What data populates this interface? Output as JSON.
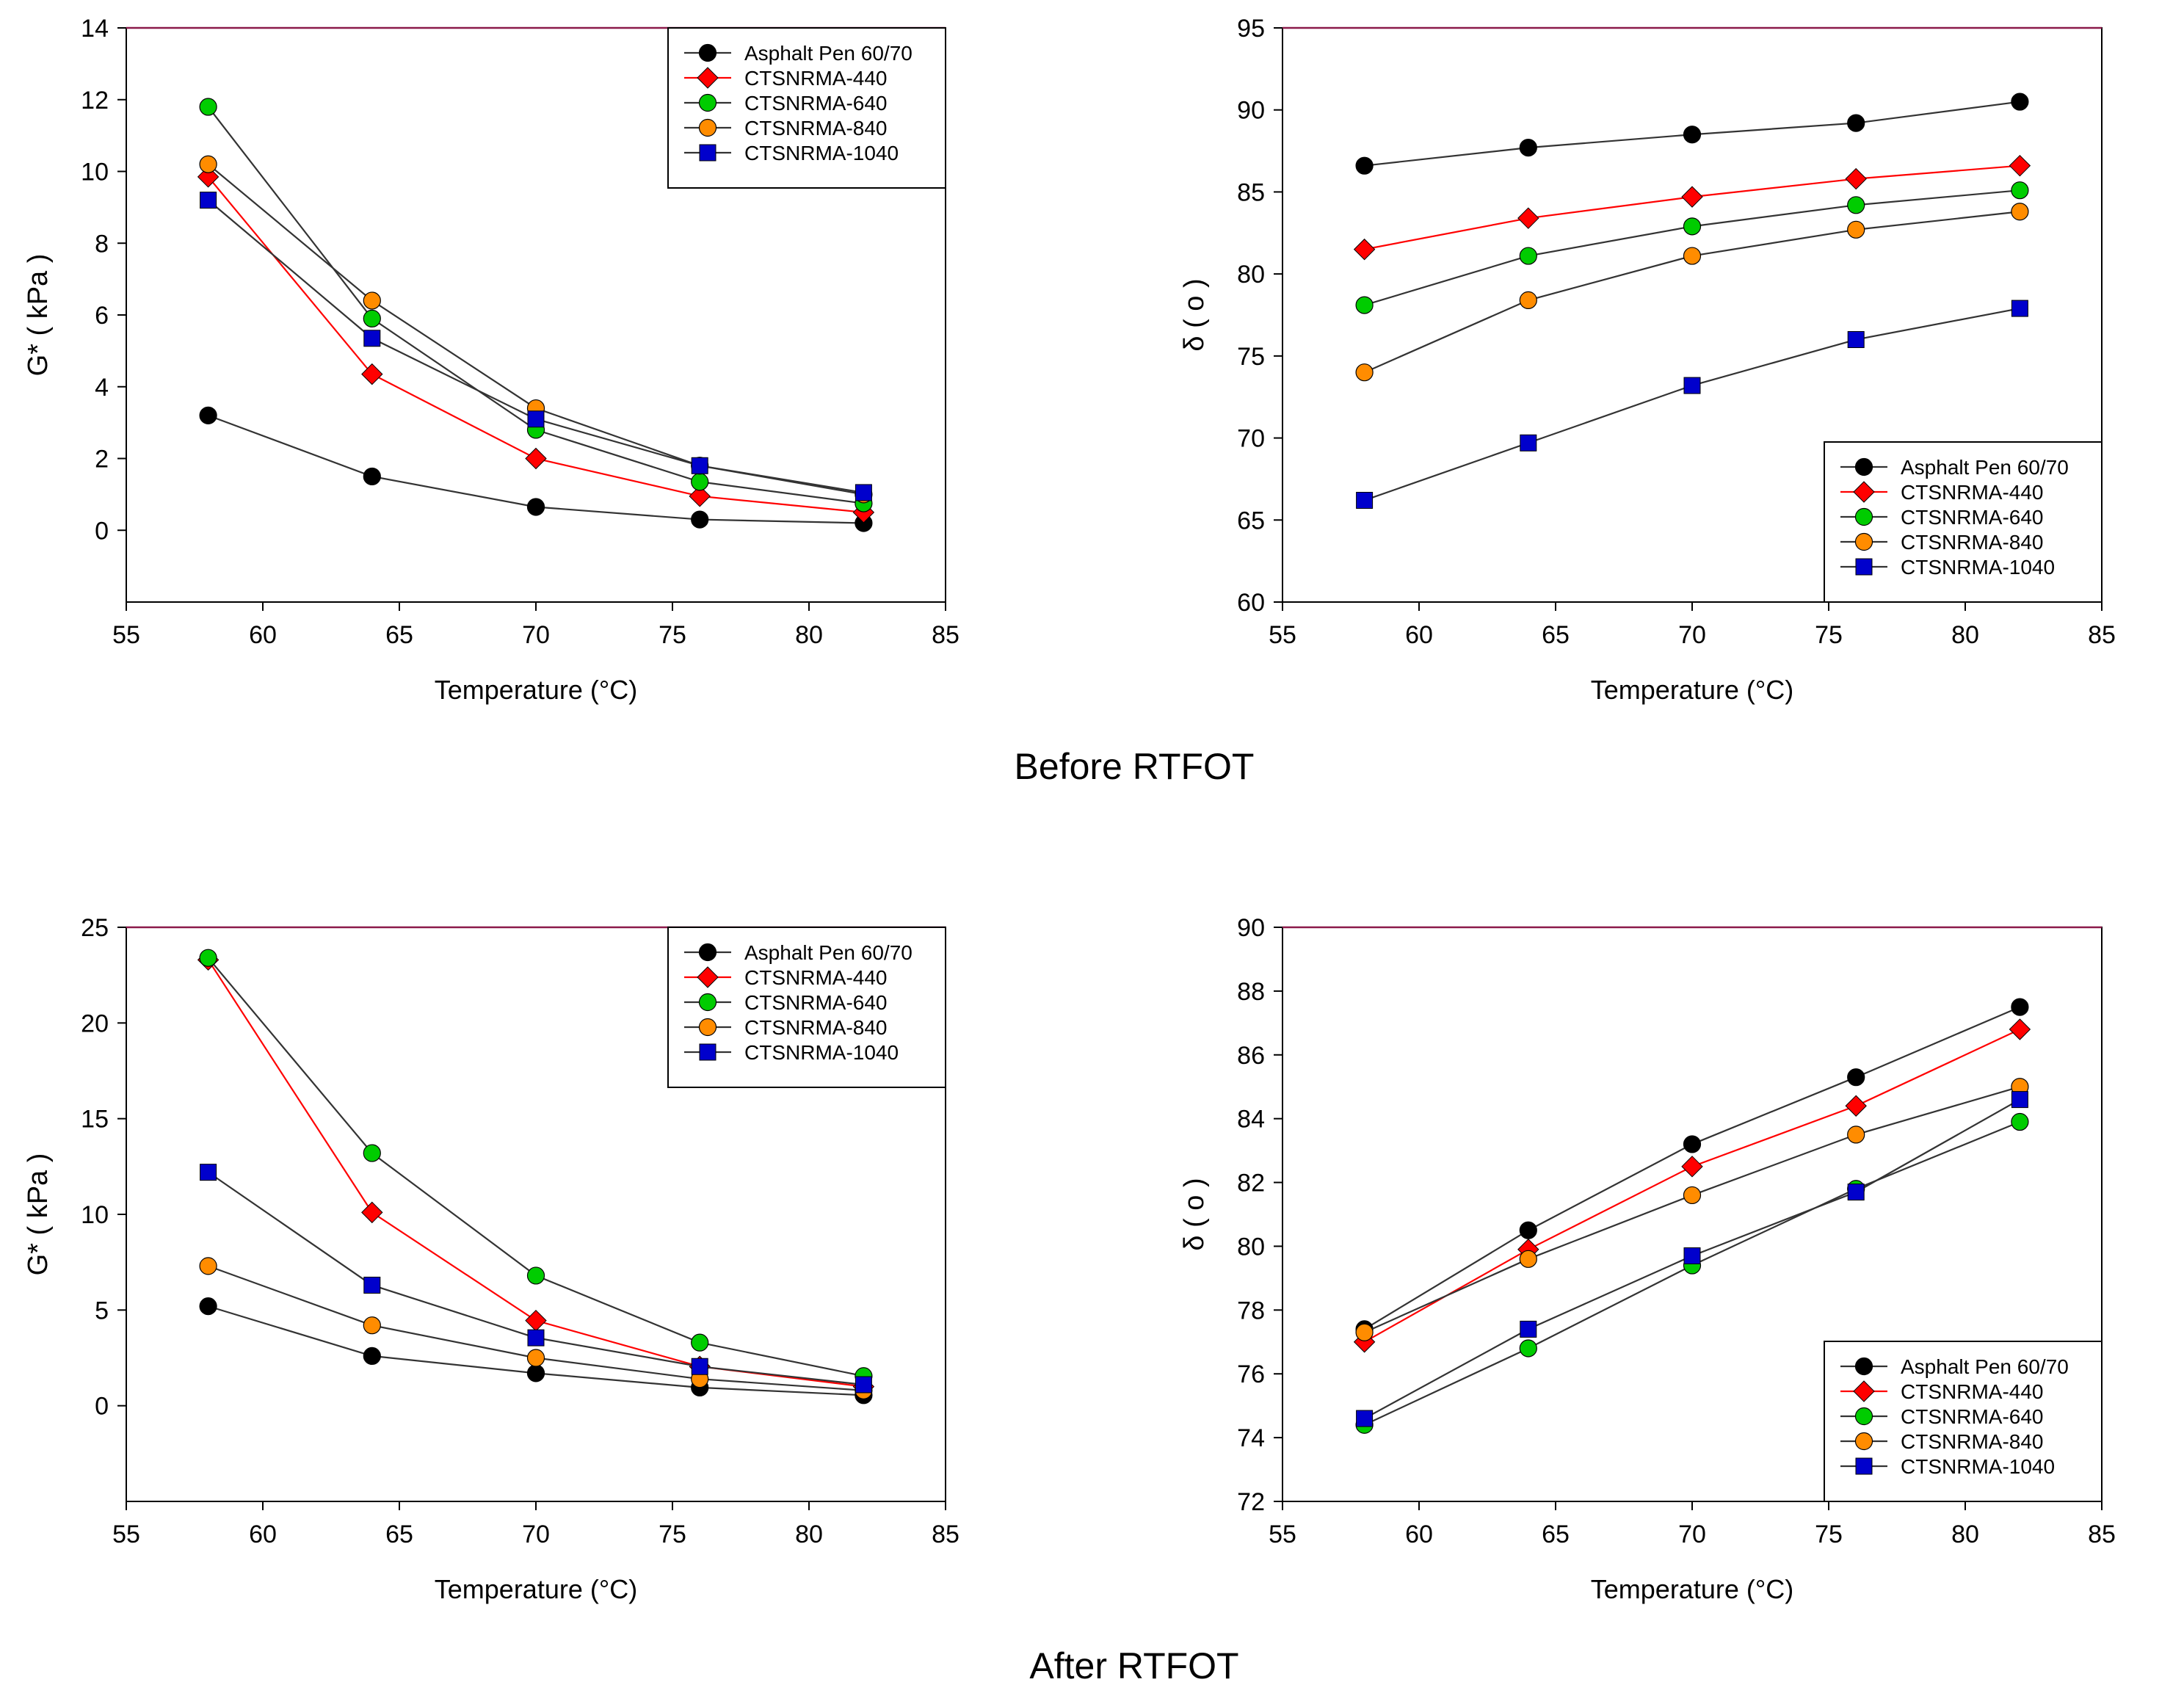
{
  "captions": {
    "top": "Before RTFOT",
    "bottom": "After RTFOT"
  },
  "series_style": [
    {
      "name": "Asphalt Pen 60/70",
      "color": "#000000",
      "marker": "circle"
    },
    {
      "name": "CTSNRMA-440",
      "color": "#ff0000",
      "marker": "diamond"
    },
    {
      "name": "CTSNRMA-640",
      "color": "#00cc00",
      "marker": "circle"
    },
    {
      "name": "CTSNRMA-840",
      "color": "#ff8c00",
      "marker": "circle"
    },
    {
      "name": "CTSNRMA-1040",
      "color": "#0000cc",
      "marker": "square"
    }
  ],
  "chart_data": [
    {
      "type": "line",
      "panel": "before-gstar",
      "title": "",
      "xlabel": "Temperature (°C)",
      "ylabel": "G* ( kPa )",
      "xlim": [
        55,
        85
      ],
      "ylim": [
        -2,
        14
      ],
      "xticks": [
        55,
        60,
        65,
        70,
        75,
        80,
        85
      ],
      "yticks": [
        0,
        2,
        4,
        6,
        8,
        10,
        12,
        14
      ],
      "legend_position": "top-right",
      "x": [
        58,
        64,
        70,
        76,
        82
      ],
      "series": [
        {
          "name": "Asphalt Pen 60/70",
          "values": [
            3.2,
            1.5,
            0.65,
            0.3,
            0.2
          ]
        },
        {
          "name": "CTSNRMA-440",
          "values": [
            9.85,
            4.35,
            2.0,
            0.95,
            0.5
          ]
        },
        {
          "name": "CTSNRMA-640",
          "values": [
            11.8,
            5.9,
            2.8,
            1.35,
            0.75
          ]
        },
        {
          "name": "CTSNRMA-840",
          "values": [
            10.2,
            6.4,
            3.4,
            1.8,
            1.0
          ]
        },
        {
          "name": "CTSNRMA-1040",
          "values": [
            9.2,
            5.35,
            3.1,
            1.8,
            1.05
          ]
        }
      ]
    },
    {
      "type": "line",
      "panel": "before-delta",
      "title": "",
      "xlabel": "Temperature (°C)",
      "ylabel": "δ ( o )",
      "xlim": [
        55,
        85
      ],
      "ylim": [
        60,
        95
      ],
      "xticks": [
        55,
        60,
        65,
        70,
        75,
        80,
        85
      ],
      "yticks": [
        60,
        65,
        70,
        75,
        80,
        85,
        90,
        95
      ],
      "legend_position": "bottom-right",
      "x": [
        58,
        64,
        70,
        76,
        82
      ],
      "series": [
        {
          "name": "Asphalt Pen 60/70",
          "values": [
            86.6,
            87.7,
            88.5,
            89.2,
            90.5
          ]
        },
        {
          "name": "CTSNRMA-440",
          "values": [
            81.5,
            83.4,
            84.7,
            85.8,
            86.6
          ]
        },
        {
          "name": "CTSNRMA-640",
          "values": [
            78.1,
            81.1,
            82.9,
            84.2,
            85.1
          ]
        },
        {
          "name": "CTSNRMA-840",
          "values": [
            74.0,
            78.4,
            81.1,
            82.7,
            83.8
          ]
        },
        {
          "name": "CTSNRMA-1040",
          "values": [
            66.2,
            69.7,
            73.2,
            76.0,
            77.9
          ]
        }
      ]
    },
    {
      "type": "line",
      "panel": "after-gstar",
      "title": "",
      "xlabel": "Temperature (°C)",
      "ylabel": "G* ( kPa )",
      "xlim": [
        55,
        85
      ],
      "ylim": [
        -5,
        25
      ],
      "xticks": [
        55,
        60,
        65,
        70,
        75,
        80,
        85
      ],
      "yticks": [
        0,
        5,
        10,
        15,
        20,
        25
      ],
      "legend_position": "top-right",
      "x": [
        58,
        64,
        70,
        76,
        82
      ],
      "series": [
        {
          "name": "Asphalt Pen 60/70",
          "values": [
            5.2,
            2.6,
            1.7,
            0.95,
            0.55
          ]
        },
        {
          "name": "CTSNRMA-440",
          "values": [
            23.3,
            10.1,
            4.45,
            2.05,
            1.0
          ]
        },
        {
          "name": "CTSNRMA-640",
          "values": [
            23.4,
            13.2,
            6.8,
            3.3,
            1.55
          ]
        },
        {
          "name": "CTSNRMA-840",
          "values": [
            7.3,
            4.2,
            2.5,
            1.4,
            0.8
          ]
        },
        {
          "name": "CTSNRMA-1040",
          "values": [
            12.2,
            6.3,
            3.55,
            2.05,
            1.1
          ]
        }
      ]
    },
    {
      "type": "line",
      "panel": "after-delta",
      "title": "",
      "xlabel": "Temperature (°C)",
      "ylabel": "δ ( o )",
      "xlim": [
        55,
        85
      ],
      "ylim": [
        72,
        90
      ],
      "xticks": [
        55,
        60,
        65,
        70,
        75,
        80,
        85
      ],
      "yticks": [
        72,
        74,
        76,
        78,
        80,
        82,
        84,
        86,
        88,
        90
      ],
      "legend_position": "bottom-right",
      "x": [
        58,
        64,
        70,
        76,
        82
      ],
      "series": [
        {
          "name": "Asphalt Pen 60/70",
          "values": [
            77.4,
            80.5,
            83.2,
            85.3,
            87.5
          ]
        },
        {
          "name": "CTSNRMA-440",
          "values": [
            77.0,
            79.9,
            82.5,
            84.4,
            86.8
          ]
        },
        {
          "name": "CTSNRMA-640",
          "values": [
            74.4,
            76.8,
            79.4,
            81.8,
            83.9
          ]
        },
        {
          "name": "CTSNRMA-840",
          "values": [
            77.3,
            79.6,
            81.6,
            83.5,
            85.0
          ]
        },
        {
          "name": "CTSNRMA-1040",
          "values": [
            74.6,
            77.4,
            79.7,
            81.7,
            84.6
          ]
        }
      ]
    }
  ]
}
